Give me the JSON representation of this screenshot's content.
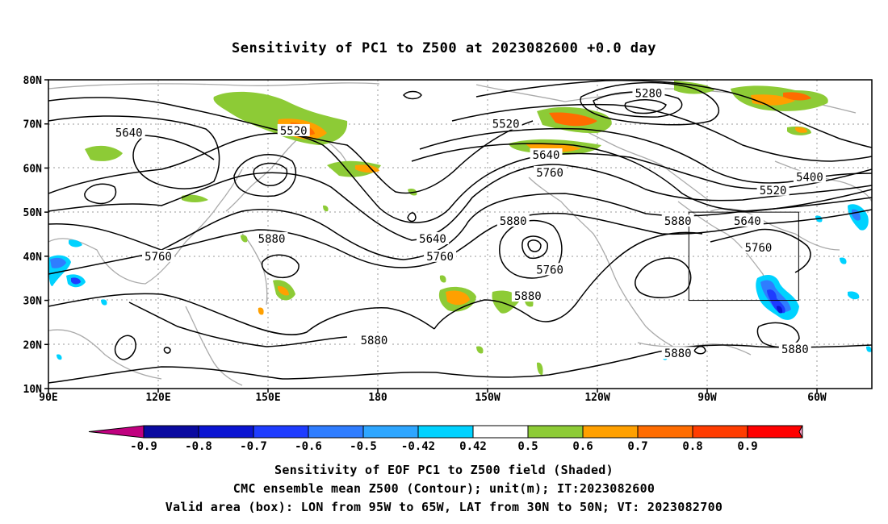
{
  "title": "Sensitivity of PC1 to Z500 at 2023082600 +0.0 day",
  "map": {
    "lat_labels": [
      "80N",
      "70N",
      "60N",
      "50N",
      "40N",
      "30N",
      "20N",
      "10N"
    ],
    "lon_labels": [
      "90E",
      "120E",
      "150E",
      "180",
      "150W",
      "120W",
      "90W",
      "60W"
    ],
    "contour_levels": [
      "5280",
      "5400",
      "5520",
      "5640",
      "5760",
      "5880"
    ],
    "contour_labels": [
      {
        "text": "5640",
        "lon": 112,
        "lat": 68
      },
      {
        "text": "5520",
        "lon": 157,
        "lat": 68.5
      },
      {
        "text": "5880",
        "lon": 151,
        "lat": 44
      },
      {
        "text": "5760",
        "lon": 120,
        "lat": 40
      },
      {
        "text": "5640",
        "lon": 195,
        "lat": 44
      },
      {
        "text": "5760",
        "lon": 197,
        "lat": 40
      },
      {
        "text": "5880",
        "lon": 217,
        "lat": 48
      },
      {
        "text": "5760",
        "lon": 227,
        "lat": 37
      },
      {
        "text": "5880",
        "lon": 221,
        "lat": 31
      },
      {
        "text": "5520",
        "lon": 215,
        "lat": 70
      },
      {
        "text": "5640",
        "lon": 226,
        "lat": 63
      },
      {
        "text": "5760",
        "lon": 227,
        "lat": 59
      },
      {
        "text": "5280",
        "lon": 254,
        "lat": 77
      },
      {
        "text": "5880",
        "lon": 262,
        "lat": 48
      },
      {
        "text": "5400",
        "lon": 298,
        "lat": 58
      },
      {
        "text": "5520",
        "lon": 288,
        "lat": 55
      },
      {
        "text": "5640",
        "lon": 281,
        "lat": 48
      },
      {
        "text": "5760",
        "lon": 284,
        "lat": 42
      },
      {
        "text": "5880",
        "lon": 179,
        "lat": 21
      },
      {
        "text": "5880",
        "lon": 262,
        "lat": 18
      },
      {
        "text": "5880",
        "lon": 294,
        "lat": 19
      }
    ],
    "valid_box": {
      "lon_min": 265,
      "lon_max": 295,
      "lat_min": 30,
      "lat_max": 50
    }
  },
  "colorbar": {
    "tick_labels": [
      "-0.9",
      "-0.8",
      "-0.7",
      "-0.6",
      "-0.5",
      "-0.42",
      "0.42",
      "0.5",
      "0.6",
      "0.7",
      "0.8",
      "0.9"
    ],
    "colors": [
      "#c0007f",
      "#0a0aa0",
      "#0a14d2",
      "#1e3cff",
      "#2f7dff",
      "#2ea6ff",
      "#00d2ff",
      "#ffffff",
      "#8dcb36",
      "#ffa000",
      "#ff6c00",
      "#ff3c00",
      "#ff0000",
      "#ff9cc8"
    ]
  },
  "caption": {
    "line1": "Sensitivity of EOF PC1 to Z500 field (Shaded)",
    "line2": "CMC ensemble mean Z500 (Contour); unit(m); IT:2023082600",
    "line3": "Valid area (box): LON from 95W to 65W, LAT from 30N to 50N; VT: 2023082700"
  }
}
